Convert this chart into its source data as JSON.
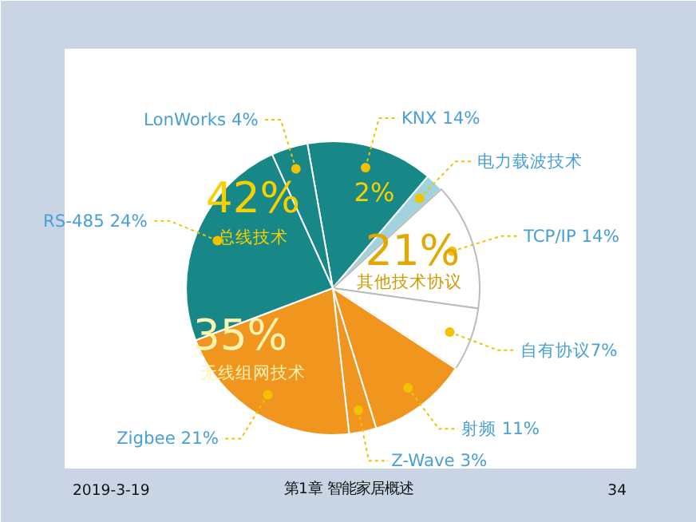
{
  "chart_data": {
    "type": "pie",
    "categories": [
      "KNX 14%",
      "电力载波技术",
      "TCP/IP 14%",
      "自有协议7%",
      "射频 11%",
      "Z-Wave 3%",
      "Zigbee 21%",
      "RS-485 24%",
      "LonWorks 4%"
    ],
    "values": [
      14,
      2,
      14,
      7,
      11,
      3,
      21,
      24,
      4
    ],
    "colors": [
      "#178787",
      "#9fd4de",
      "#ffffff",
      "#ffffff",
      "#f0961e",
      "#f0961e",
      "#f0961e",
      "#178787",
      "#178787"
    ],
    "legend": false,
    "annotations": [
      "42%",
      "总线技术",
      "35%",
      "无线组网技术",
      "21%",
      "其他技术协议",
      "2%",
      "2019-3-19",
      "第1章 智能家居概述",
      "34"
    ]
  }
}
